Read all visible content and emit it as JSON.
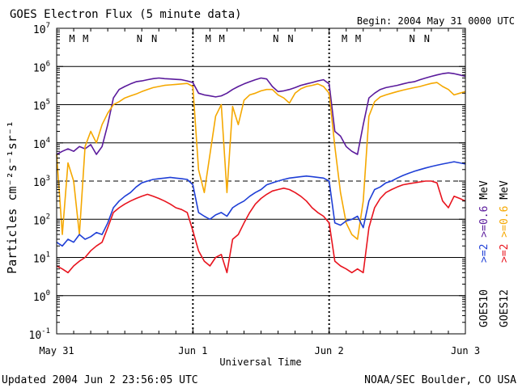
{
  "chart_data": {
    "type": "line",
    "title": "GOES Electron Flux (5 minute data)",
    "subtitle": "Begin: 2004 May 31 0000 UTC",
    "xlabel": "Universal Time",
    "ylabel": "Particles cm⁻²s⁻¹sr⁻¹",
    "x_unit": "hours since 2004 May 31 0000 UTC",
    "xlim": [
      0,
      72
    ],
    "x_ticks": [
      {
        "value": 0,
        "label": "May 31"
      },
      {
        "value": 24,
        "label": "Jun 1"
      },
      {
        "value": 48,
        "label": "Jun 2"
      },
      {
        "value": 72,
        "label": "Jun 3"
      }
    ],
    "y_scale": "log",
    "ylim": [
      0.1,
      10000000
    ],
    "y_ticks": [
      {
        "exp": -1,
        "base": "10",
        "sup": "-1"
      },
      {
        "exp": 0,
        "base": "10",
        "sup": "0"
      },
      {
        "exp": 1,
        "base": "10",
        "sup": "1"
      },
      {
        "exp": 2,
        "base": "10",
        "sup": "2"
      },
      {
        "exp": 3,
        "base": "10",
        "sup": "3"
      },
      {
        "exp": 4,
        "base": "10",
        "sup": "4"
      },
      {
        "exp": 5,
        "base": "10",
        "sup": "5"
      },
      {
        "exp": 6,
        "base": "10",
        "sup": "6"
      },
      {
        "exp": 7,
        "base": "10",
        "sup": "7"
      }
    ],
    "grid_lines_exp": [
      0,
      1,
      2,
      4,
      5,
      6
    ],
    "dashed_line_exp": 3,
    "day_divider_hours": [
      24,
      48
    ],
    "series": [
      {
        "name": "GOES10 >=0.6 MeV",
        "color": "#5a1a9c",
        "x": [
          0,
          1,
          2,
          3,
          4,
          5,
          6,
          7,
          8,
          9,
          10,
          11,
          12,
          13,
          14,
          15,
          16,
          17,
          18,
          19,
          20,
          21,
          22,
          23,
          24,
          25,
          26,
          27,
          28,
          29,
          30,
          31,
          32,
          33,
          34,
          35,
          36,
          37,
          38,
          39,
          40,
          41,
          42,
          43,
          44,
          45,
          46,
          47,
          48,
          49,
          50,
          51,
          52,
          53,
          54,
          55,
          56,
          57,
          58,
          59,
          60,
          61,
          62,
          63,
          64,
          65,
          66,
          67,
          68,
          69,
          70,
          71,
          72
        ],
        "y": [
          5000,
          6000,
          7000,
          6000,
          8000,
          7000,
          9000,
          5000,
          8000,
          30000,
          150000,
          250000,
          300000,
          350000,
          400000,
          420000,
          450000,
          480000,
          500000,
          480000,
          470000,
          460000,
          450000,
          420000,
          380000,
          200000,
          180000,
          170000,
          160000,
          170000,
          200000,
          250000,
          300000,
          350000,
          400000,
          450000,
          500000,
          470000,
          300000,
          220000,
          230000,
          250000,
          280000,
          320000,
          350000,
          380000,
          420000,
          450000,
          350000,
          20000,
          15000,
          8000,
          6000,
          5000,
          30000,
          150000,
          200000,
          250000,
          280000,
          300000,
          320000,
          350000,
          380000,
          400000,
          450000,
          500000,
          550000,
          600000,
          650000,
          680000,
          650000,
          600000,
          550000
        ]
      },
      {
        "name": "GOES12 >=0.6 MeV",
        "color": "#f5a800",
        "x": [
          0,
          1,
          2,
          3,
          4,
          5,
          6,
          7,
          8,
          9,
          10,
          11,
          12,
          13,
          14,
          15,
          16,
          17,
          18,
          19,
          20,
          21,
          22,
          23,
          24,
          25,
          26,
          27,
          28,
          29,
          30,
          31,
          32,
          33,
          34,
          35,
          36,
          37,
          38,
          39,
          40,
          41,
          42,
          43,
          44,
          45,
          46,
          47,
          48,
          49,
          50,
          51,
          52,
          53,
          54,
          55,
          56,
          57,
          58,
          59,
          60,
          61,
          62,
          63,
          64,
          65,
          66,
          67,
          68,
          69,
          70,
          71,
          72
        ],
        "y": [
          5000,
          40,
          3000,
          1000,
          40,
          8000,
          20000,
          10000,
          30000,
          60000,
          100000,
          120000,
          150000,
          170000,
          190000,
          220000,
          250000,
          280000,
          300000,
          320000,
          330000,
          340000,
          350000,
          360000,
          300000,
          2000,
          500,
          5000,
          50000,
          100000,
          500,
          90000,
          30000,
          130000,
          180000,
          200000,
          230000,
          250000,
          250000,
          180000,
          150000,
          110000,
          200000,
          260000,
          300000,
          320000,
          350000,
          300000,
          200000,
          8000,
          500,
          80,
          40,
          30,
          300,
          50000,
          120000,
          160000,
          180000,
          200000,
          220000,
          240000,
          260000,
          280000,
          300000,
          330000,
          360000,
          380000,
          300000,
          250000,
          180000,
          200000,
          220000
        ]
      },
      {
        "name": "GOES10 >=2 MeV",
        "color": "#1f3fd6",
        "x": [
          0,
          1,
          2,
          3,
          4,
          5,
          6,
          7,
          8,
          9,
          10,
          11,
          12,
          13,
          14,
          15,
          16,
          17,
          18,
          19,
          20,
          21,
          22,
          23,
          24,
          25,
          26,
          27,
          28,
          29,
          30,
          31,
          32,
          33,
          34,
          35,
          36,
          37,
          38,
          39,
          40,
          41,
          42,
          43,
          44,
          45,
          46,
          47,
          48,
          49,
          50,
          51,
          52,
          53,
          54,
          55,
          56,
          57,
          58,
          59,
          60,
          61,
          62,
          63,
          64,
          65,
          66,
          67,
          68,
          69,
          70,
          71,
          72
        ],
        "y": [
          25,
          20,
          30,
          25,
          40,
          30,
          35,
          45,
          40,
          80,
          200,
          300,
          400,
          500,
          700,
          900,
          1000,
          1100,
          1150,
          1200,
          1250,
          1200,
          1150,
          1100,
          800,
          150,
          120,
          100,
          130,
          150,
          120,
          200,
          250,
          300,
          400,
          500,
          600,
          800,
          900,
          1000,
          1100,
          1200,
          1250,
          1300,
          1350,
          1300,
          1250,
          1200,
          1000,
          80,
          70,
          90,
          100,
          120,
          60,
          300,
          600,
          700,
          900,
          1000,
          1200,
          1400,
          1600,
          1800,
          2000,
          2200,
          2400,
          2600,
          2800,
          3000,
          3200,
          3000,
          2800
        ]
      },
      {
        "name": "GOES12 >=2 MeV",
        "color": "#e8141e",
        "x": [
          0,
          1,
          2,
          3,
          4,
          5,
          6,
          7,
          8,
          9,
          10,
          11,
          12,
          13,
          14,
          15,
          16,
          17,
          18,
          19,
          20,
          21,
          22,
          23,
          24,
          25,
          26,
          27,
          28,
          29,
          30,
          31,
          32,
          33,
          34,
          35,
          36,
          37,
          38,
          39,
          40,
          41,
          42,
          43,
          44,
          45,
          46,
          47,
          48,
          49,
          50,
          51,
          52,
          53,
          54,
          55,
          56,
          57,
          58,
          59,
          60,
          61,
          62,
          63,
          64,
          65,
          66,
          67,
          68,
          69,
          70,
          71,
          72
        ],
        "y": [
          6,
          5,
          4,
          6,
          8,
          10,
          15,
          20,
          25,
          60,
          150,
          200,
          250,
          300,
          350,
          400,
          450,
          400,
          350,
          300,
          250,
          200,
          180,
          150,
          50,
          15,
          8,
          6,
          10,
          12,
          4,
          30,
          40,
          80,
          150,
          250,
          350,
          450,
          550,
          600,
          650,
          600,
          500,
          400,
          300,
          200,
          150,
          120,
          80,
          8,
          6,
          5,
          4,
          5,
          4,
          60,
          200,
          350,
          500,
          600,
          700,
          800,
          850,
          900,
          950,
          1000,
          1000,
          900,
          300,
          200,
          400,
          350,
          300
        ]
      }
    ],
    "marker_groups": [
      {
        "label": "M",
        "hour": 2.7,
        "color": "#e8141e"
      },
      {
        "label": "M",
        "hour": 5.1,
        "color": "#1f3fd6"
      },
      {
        "label": "N",
        "hour": 14.6,
        "color": "#e8141e"
      },
      {
        "label": "N",
        "hour": 17.2,
        "color": "#1f3fd6"
      },
      {
        "label": "M",
        "hour": 26.7,
        "color": "#e8141e"
      },
      {
        "label": "M",
        "hour": 29.1,
        "color": "#1f3fd6"
      },
      {
        "label": "N",
        "hour": 38.6,
        "color": "#e8141e"
      },
      {
        "label": "N",
        "hour": 41.2,
        "color": "#1f3fd6"
      },
      {
        "label": "M",
        "hour": 50.7,
        "color": "#e8141e"
      },
      {
        "label": "M",
        "hour": 53.1,
        "color": "#1f3fd6"
      },
      {
        "label": "N",
        "hour": 62.6,
        "color": "#e8141e"
      },
      {
        "label": "N",
        "hour": 65.2,
        "color": "#1f3fd6"
      }
    ],
    "legend": {
      "placement": "right",
      "goes10_title": "GOES10",
      "goes12_title": "GOES12",
      "goes10_entries": [
        {
          "text": ">=2",
          "color": "#1f3fd6"
        },
        {
          "text": ">=0.6",
          "color": "#5a1a9c"
        },
        {
          "text": "MeV",
          "color": "#000000"
        }
      ],
      "goes12_entries": [
        {
          "text": ">=2",
          "color": "#e8141e"
        },
        {
          "text": ">=0.6",
          "color": "#f5a800"
        },
        {
          "text": "MeV",
          "color": "#000000"
        }
      ]
    },
    "footer": {
      "updated": "Updated 2004 Jun  2 23:56:05 UTC",
      "credit": "NOAA/SEC Boulder, CO USA"
    }
  }
}
